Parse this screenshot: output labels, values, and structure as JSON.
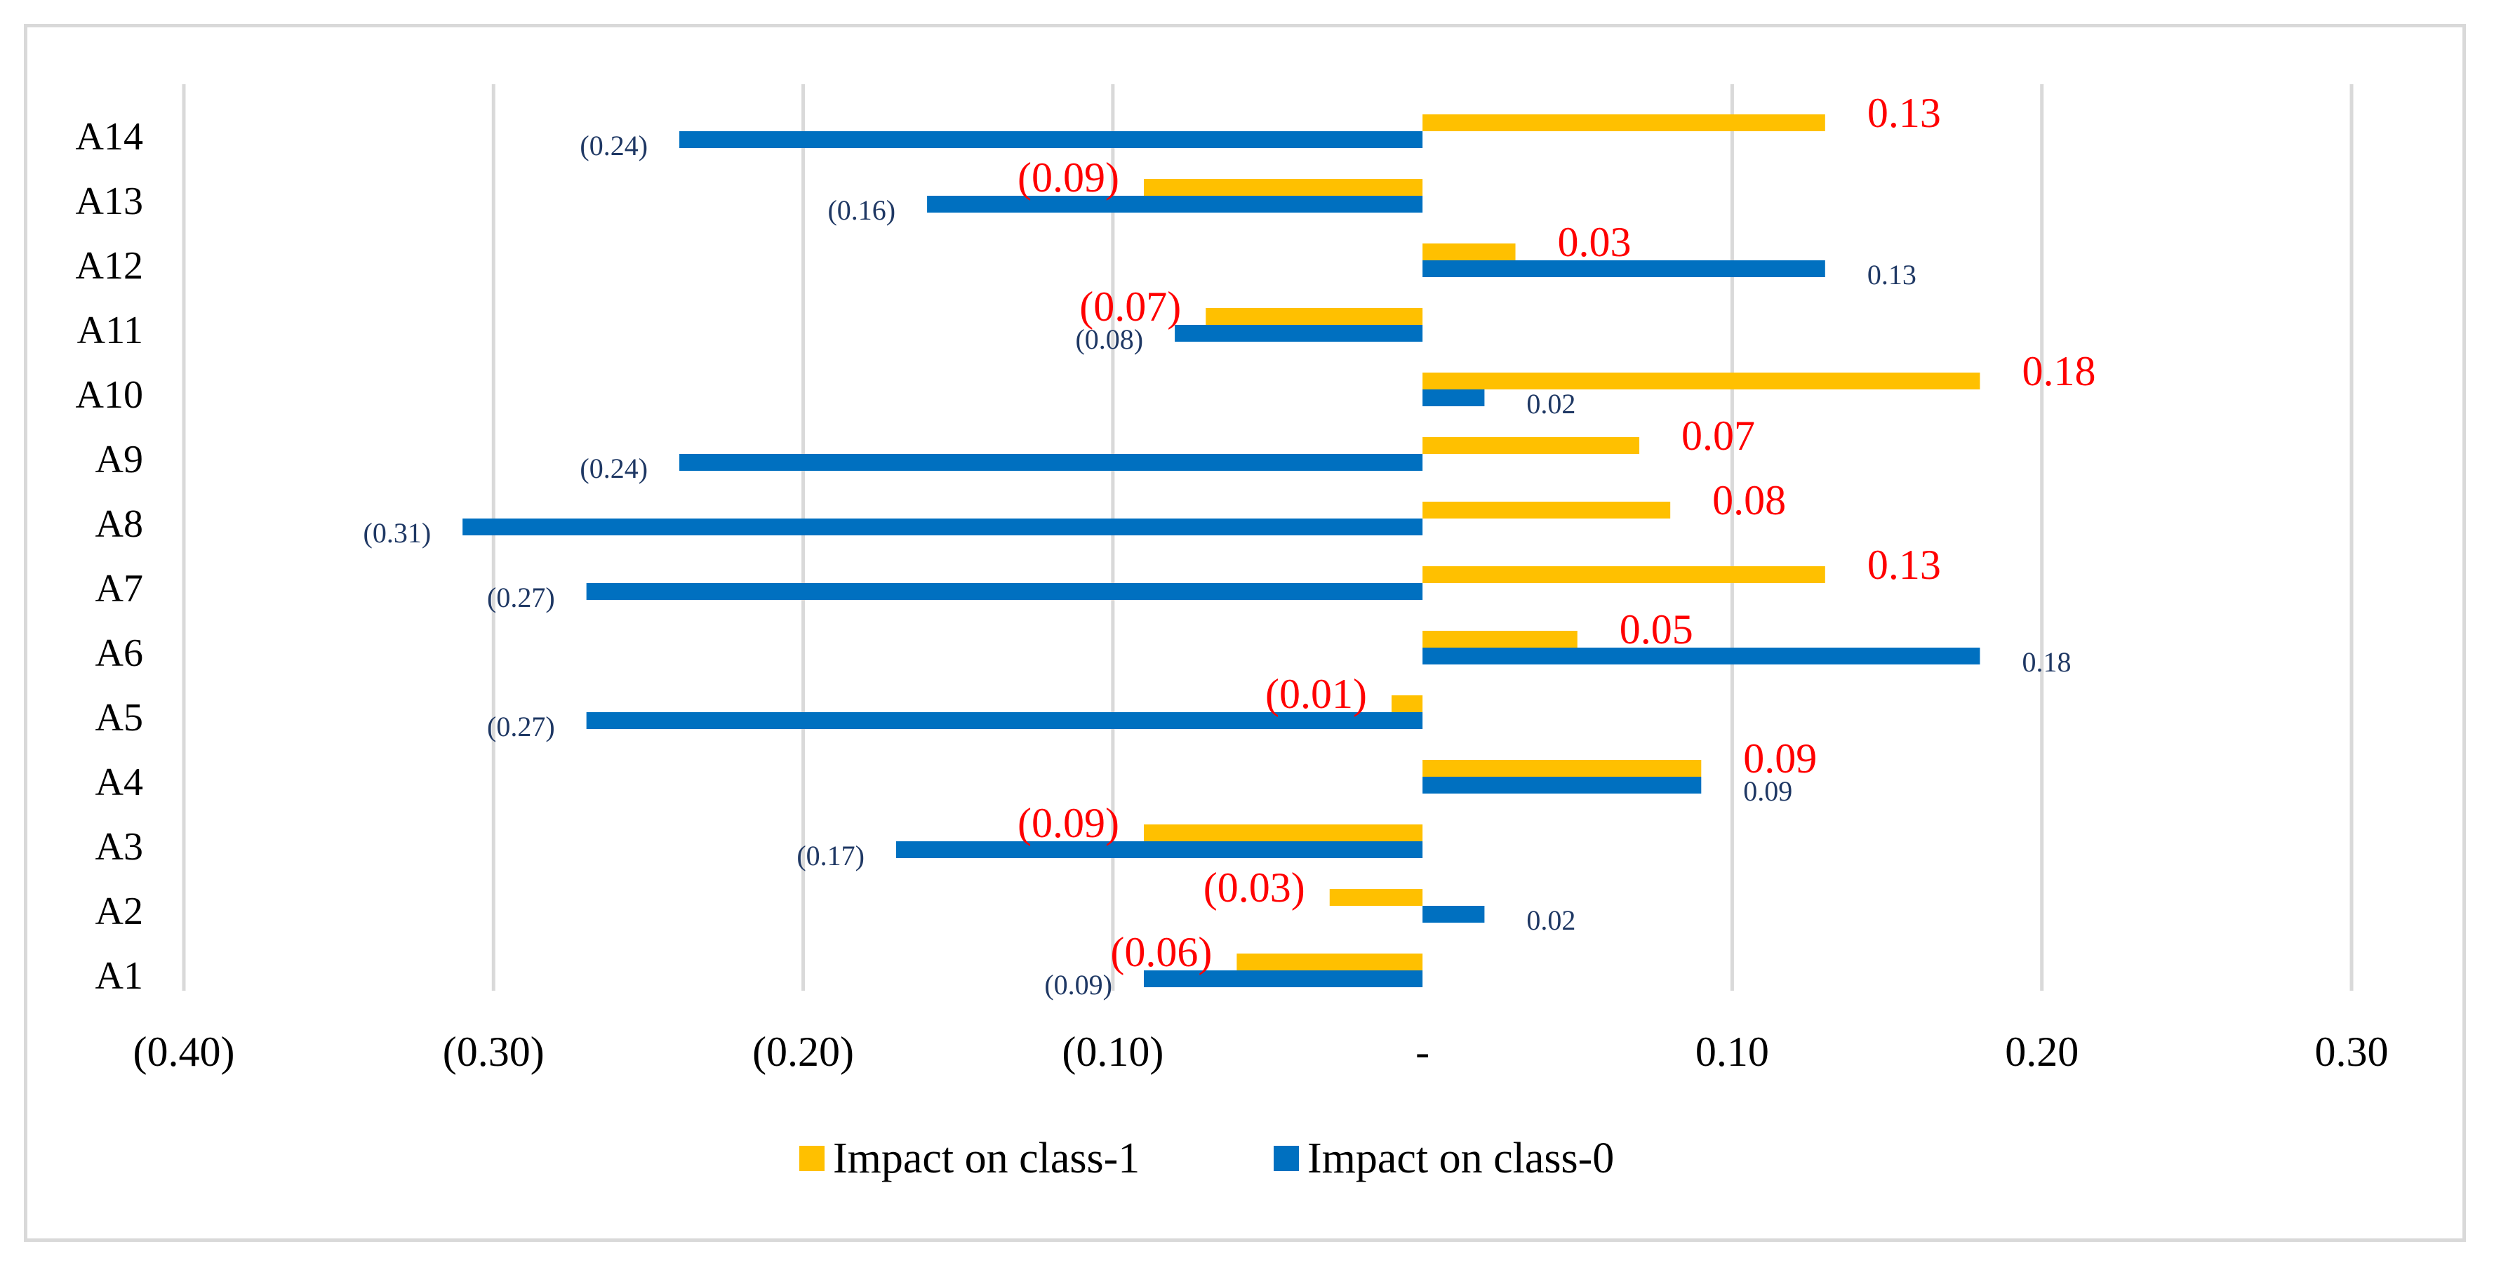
{
  "chart_data": {
    "type": "bar",
    "orientation": "horizontal",
    "title": "",
    "xlabel": "",
    "ylabel": "",
    "categories": [
      "A1",
      "A2",
      "A3",
      "A4",
      "A5",
      "A6",
      "A7",
      "A8",
      "A9",
      "A10",
      "A11",
      "A12",
      "A13",
      "A14"
    ],
    "series": [
      {
        "name": "Impact on class-1",
        "color": "#ffc000",
        "label_color": "#ff0000",
        "values": [
          -0.06,
          -0.03,
          -0.09,
          0.09,
          -0.01,
          0.05,
          0.13,
          0.08,
          0.07,
          0.18,
          -0.07,
          0.03,
          -0.09,
          0.13
        ],
        "labels": [
          "(0.06)",
          "(0.03)",
          "(0.09)",
          "0.09",
          "(0.01)",
          "0.05",
          "0.13",
          "0.08",
          "0.07",
          "0.18",
          "(0.07)",
          "0.03",
          "(0.09)",
          "0.13"
        ]
      },
      {
        "name": "Impact on class-0",
        "color": "#0070c0",
        "label_color": "#1f3864",
        "values": [
          -0.09,
          0.02,
          -0.17,
          0.09,
          -0.27,
          0.18,
          -0.27,
          -0.31,
          -0.24,
          0.02,
          -0.08,
          0.13,
          -0.16,
          -0.24
        ],
        "labels": [
          "(0.09)",
          "0.02",
          "(0.17)",
          "0.09",
          "(0.27)",
          "0.18",
          "(0.27)",
          "(0.31)",
          "(0.24)",
          "0.02",
          "(0.08)",
          "0.13",
          "(0.16)",
          "(0.24)"
        ]
      }
    ],
    "xlim": [
      -0.4,
      0.3
    ],
    "xticks": [
      -0.4,
      -0.3,
      -0.2,
      -0.1,
      0,
      0.1,
      0.2,
      0.3
    ],
    "xtick_labels": [
      "(0.40)",
      "(0.30)",
      "(0.20)",
      "(0.10)",
      "-",
      "0.10",
      "0.20",
      "0.30"
    ],
    "grid": "vertical",
    "legend_position": "bottom"
  }
}
